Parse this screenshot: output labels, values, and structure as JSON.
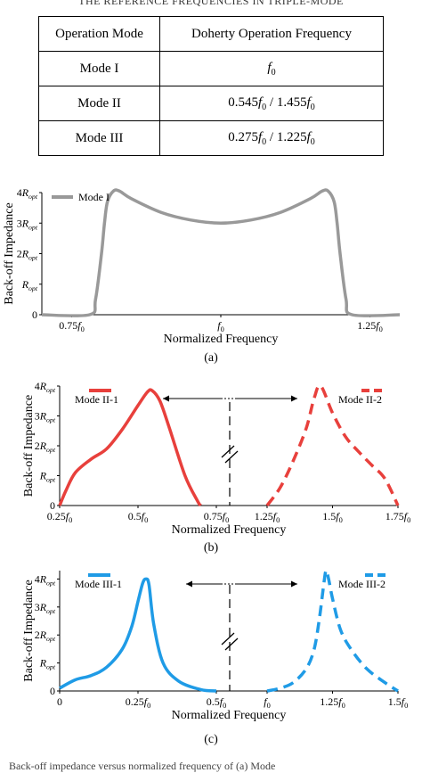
{
  "table": {
    "caption": "THE REFERENCE FREQUENCIES IN TRIPLE-MODE",
    "headers": [
      "Operation Mode",
      "Doherty Operation Frequency"
    ],
    "rows": [
      [
        "Mode I",
        "f0"
      ],
      [
        "Mode II",
        "0.545f0 / 1.455f0"
      ],
      [
        "Mode III",
        "0.275f0 / 1.225f0"
      ]
    ]
  },
  "figure_caption": "Back-off impedance versus normalized frequency of (a) Mode",
  "chart_data": [
    {
      "type": "line",
      "panel": "(a)",
      "xlabel": "Normalized Frequency",
      "ylabel": "Back-off Impedance",
      "x_tick_labels": [
        "0.75f0",
        "f0",
        "1.25f0"
      ],
      "y_tick_labels": [
        "0",
        "Ropt",
        "2Ropt",
        "3Ropt",
        "4Ropt"
      ],
      "xlim": [
        0.7,
        1.3
      ],
      "ylim": [
        0,
        4
      ],
      "series": [
        {
          "name": "Mode I",
          "color": "#999999",
          "dash": "solid",
          "x": [
            0.7,
            0.78,
            0.79,
            0.8,
            0.805,
            0.81,
            0.82,
            0.83,
            0.85,
            0.9,
            0.95,
            1.0,
            1.05,
            1.1,
            1.15,
            1.17,
            1.18,
            1.19,
            1.195,
            1.2,
            1.21,
            1.22,
            1.3
          ],
          "y": [
            0,
            0,
            0.5,
            2.0,
            3.0,
            3.7,
            4.05,
            4.05,
            3.8,
            3.35,
            3.1,
            3.0,
            3.1,
            3.35,
            3.8,
            4.05,
            4.05,
            3.7,
            3.0,
            2.0,
            0.5,
            0,
            0
          ]
        }
      ]
    },
    {
      "type": "line",
      "panel": "(b)",
      "xlabel": "Normalized Frequency",
      "ylabel": "Back-off Impedance",
      "x_tick_labels": [
        "0.25f0",
        "0.5f0",
        "0.75f0",
        "1.25f0",
        "1.5f0",
        "1.75f0"
      ],
      "y_tick_labels": [
        "0",
        "Ropt",
        "2Ropt",
        "3Ropt",
        "4Ropt"
      ],
      "ylim": [
        0,
        4
      ],
      "series": [
        {
          "name": "Mode II-1",
          "color": "#e8403c",
          "dash": "solid",
          "x": [
            0.25,
            0.27,
            0.3,
            0.35,
            0.4,
            0.45,
            0.5,
            0.53,
            0.545,
            0.57,
            0.6,
            0.65,
            0.69,
            0.7
          ],
          "y": [
            0,
            0.5,
            1.1,
            1.55,
            1.9,
            2.55,
            3.35,
            3.8,
            3.85,
            3.5,
            2.6,
            1.0,
            0.15,
            0
          ]
        },
        {
          "name": "Mode II-2",
          "color": "#e8403c",
          "dash": "dashed",
          "x": [
            1.25,
            1.3,
            1.35,
            1.4,
            1.43,
            1.455,
            1.5,
            1.55,
            1.6,
            1.65,
            1.7,
            1.75
          ],
          "y": [
            0,
            0.6,
            1.5,
            2.6,
            3.6,
            4.0,
            3.1,
            2.3,
            1.8,
            1.35,
            0.9,
            0
          ]
        }
      ]
    },
    {
      "type": "line",
      "panel": "(c)",
      "xlabel": "Normalized Frequency",
      "ylabel": "Back-off Impedance",
      "x_tick_labels": [
        "0",
        "0.25f0",
        "0.5f0",
        "f0",
        "1.25f0",
        "1.5f0"
      ],
      "y_tick_labels": [
        "0",
        "Ropt",
        "2Ropt",
        "3Ropt",
        "4Ropt"
      ],
      "ylim": [
        0,
        4.3
      ],
      "series": [
        {
          "name": "Mode III-1",
          "color": "#1f9be6",
          "dash": "solid",
          "x": [
            0,
            0.05,
            0.1,
            0.15,
            0.2,
            0.23,
            0.25,
            0.265,
            0.275,
            0.285,
            0.3,
            0.33,
            0.38,
            0.45,
            0.5
          ],
          "y": [
            0.1,
            0.4,
            0.55,
            0.85,
            1.5,
            2.3,
            3.2,
            3.85,
            4.0,
            3.8,
            2.4,
            1.0,
            0.35,
            0.05,
            0
          ]
        },
        {
          "name": "Mode III-2",
          "color": "#1f9be6",
          "dash": "dashed",
          "x": [
            1.0,
            1.05,
            1.1,
            1.15,
            1.18,
            1.2,
            1.215,
            1.225,
            1.235,
            1.25,
            1.28,
            1.32,
            1.38,
            1.45,
            1.5
          ],
          "y": [
            0,
            0.1,
            0.3,
            0.8,
            1.5,
            2.6,
            3.7,
            4.3,
            4.0,
            3.3,
            2.2,
            1.5,
            0.8,
            0.3,
            0
          ]
        }
      ]
    }
  ]
}
